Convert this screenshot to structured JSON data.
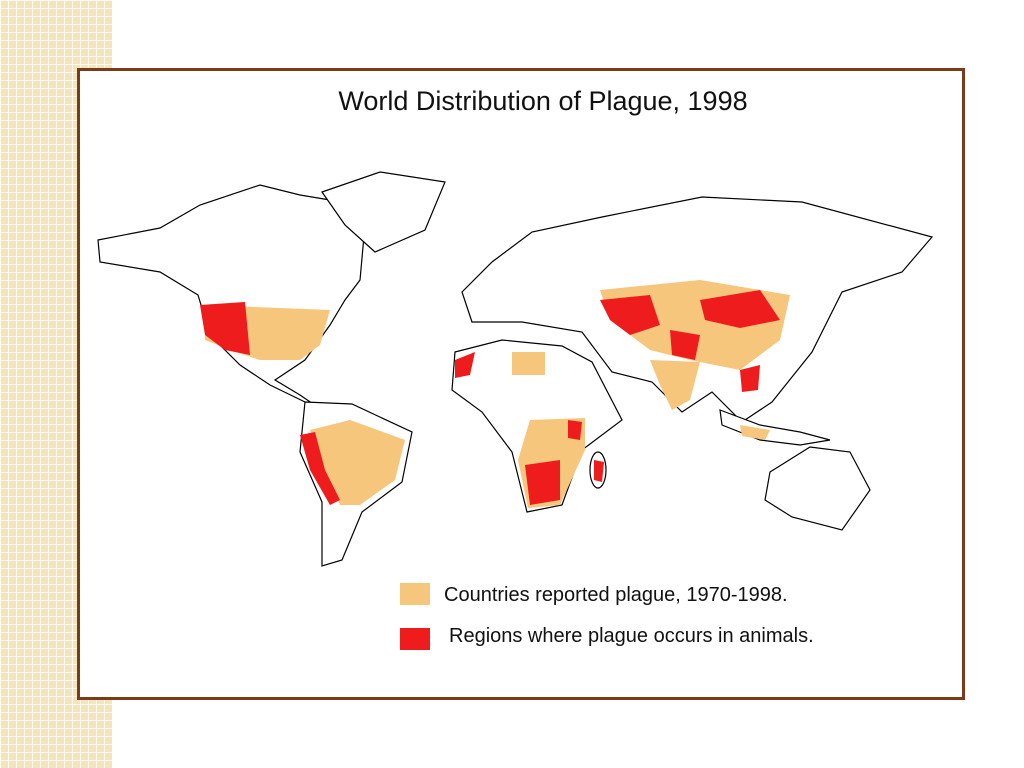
{
  "map": {
    "title": "World Distribution of Plague, 1998",
    "legend": [
      {
        "label": "Countries reported plague, 1970-1998.",
        "color": "#f6c67c"
      },
      {
        "label": "Regions where plague occurs in animals.",
        "color": "#ee1c1c"
      }
    ]
  }
}
